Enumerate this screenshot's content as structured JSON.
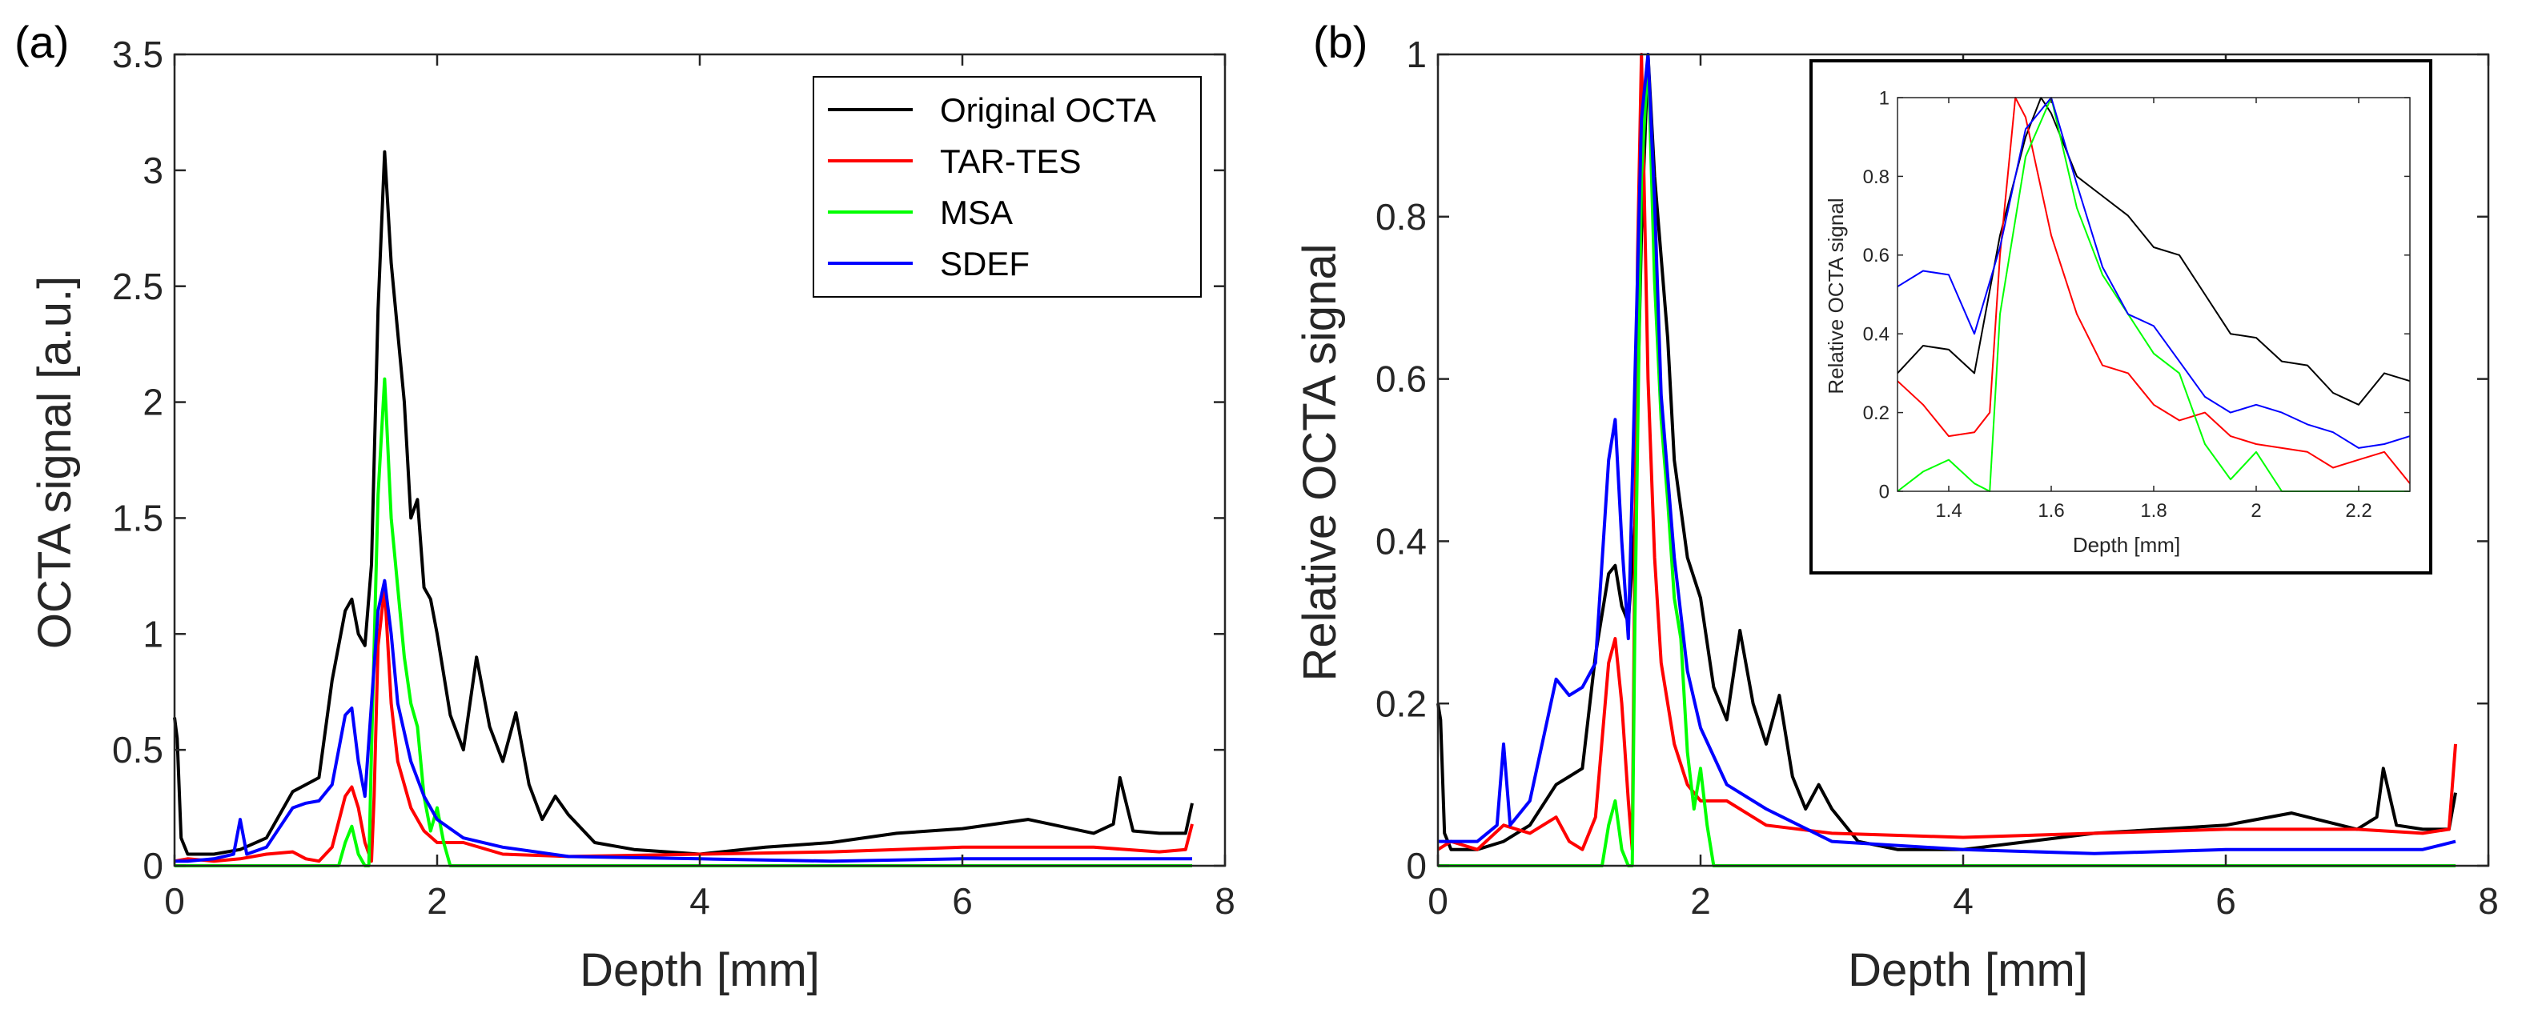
{
  "chart_data": [
    {
      "type": "line",
      "panel_label": "(a)",
      "xlabel": "Depth [mm]",
      "ylabel": "OCTA signal [a.u.]",
      "xlim": [
        0,
        8
      ],
      "ylim": [
        0,
        3.5
      ],
      "xticks": [
        "0",
        "2",
        "4",
        "6",
        "8"
      ],
      "yticks": [
        "0",
        "0.5",
        "1",
        "1.5",
        "2",
        "2.5",
        "3",
        "3.5"
      ],
      "legend": {
        "placement": "top-right",
        "entries": [
          "Original OCTA",
          "TAR-TES",
          "MSA",
          "SDEF"
        ]
      },
      "series": [
        {
          "name": "Original OCTA",
          "color": "#000000",
          "x": [
            0,
            0.02,
            0.05,
            0.1,
            0.3,
            0.5,
            0.7,
            0.9,
            1.0,
            1.1,
            1.2,
            1.3,
            1.35,
            1.4,
            1.45,
            1.5,
            1.55,
            1.6,
            1.65,
            1.7,
            1.75,
            1.8,
            1.85,
            1.9,
            1.95,
            2.0,
            2.1,
            2.2,
            2.3,
            2.4,
            2.5,
            2.6,
            2.7,
            2.8,
            2.9,
            3.0,
            3.2,
            3.5,
            4.0,
            4.5,
            5.0,
            5.5,
            6.0,
            6.5,
            7.0,
            7.15,
            7.2,
            7.3,
            7.5,
            7.7,
            7.75
          ],
          "y": [
            0.64,
            0.55,
            0.12,
            0.05,
            0.05,
            0.07,
            0.12,
            0.32,
            0.35,
            0.38,
            0.8,
            1.1,
            1.15,
            1.0,
            0.95,
            1.3,
            2.4,
            3.08,
            2.6,
            2.3,
            2.0,
            1.5,
            1.58,
            1.2,
            1.15,
            1.0,
            0.65,
            0.5,
            0.9,
            0.6,
            0.45,
            0.66,
            0.35,
            0.2,
            0.3,
            0.22,
            0.1,
            0.07,
            0.05,
            0.08,
            0.1,
            0.14,
            0.16,
            0.2,
            0.14,
            0.18,
            0.38,
            0.15,
            0.14,
            0.14,
            0.27
          ]
        },
        {
          "name": "TAR-TES",
          "color": "#ff0000",
          "x": [
            0,
            0.1,
            0.3,
            0.5,
            0.7,
            0.9,
            1.0,
            1.1,
            1.2,
            1.3,
            1.35,
            1.4,
            1.45,
            1.5,
            1.52,
            1.55,
            1.6,
            1.65,
            1.7,
            1.8,
            1.9,
            2.0,
            2.2,
            2.5,
            3.0,
            4.0,
            5.0,
            6.0,
            7.0,
            7.5,
            7.7,
            7.75
          ],
          "y": [
            0.02,
            0.03,
            0.02,
            0.03,
            0.05,
            0.06,
            0.03,
            0.02,
            0.08,
            0.3,
            0.34,
            0.25,
            0.1,
            0.02,
            0.3,
            0.95,
            1.2,
            0.7,
            0.45,
            0.25,
            0.15,
            0.1,
            0.1,
            0.05,
            0.04,
            0.05,
            0.06,
            0.08,
            0.08,
            0.06,
            0.07,
            0.18
          ]
        },
        {
          "name": "MSA",
          "color": "#00ff00",
          "x": [
            0,
            0.5,
            1.0,
            1.25,
            1.3,
            1.35,
            1.4,
            1.45,
            1.48,
            1.5,
            1.55,
            1.6,
            1.65,
            1.7,
            1.75,
            1.8,
            1.85,
            1.9,
            1.95,
            2.0,
            2.05,
            2.1,
            2.5,
            4.0,
            6.0,
            7.75
          ],
          "y": [
            0,
            0,
            0,
            0,
            0.1,
            0.17,
            0.05,
            0,
            0,
            0.5,
            1.6,
            2.1,
            1.5,
            1.2,
            0.9,
            0.7,
            0.6,
            0.3,
            0.15,
            0.25,
            0.1,
            0,
            0,
            0,
            0,
            0
          ]
        },
        {
          "name": "SDEF",
          "color": "#0000ff",
          "x": [
            0,
            0.1,
            0.3,
            0.45,
            0.5,
            0.55,
            0.7,
            0.9,
            1.0,
            1.1,
            1.2,
            1.3,
            1.35,
            1.4,
            1.45,
            1.5,
            1.55,
            1.6,
            1.65,
            1.7,
            1.8,
            1.9,
            2.0,
            2.2,
            2.5,
            3.0,
            4.0,
            5.0,
            6.0,
            7.0,
            7.5,
            7.75
          ],
          "y": [
            0.02,
            0.02,
            0.03,
            0.05,
            0.2,
            0.05,
            0.08,
            0.25,
            0.27,
            0.28,
            0.35,
            0.65,
            0.68,
            0.45,
            0.3,
            0.7,
            1.1,
            1.23,
            1.0,
            0.7,
            0.45,
            0.3,
            0.2,
            0.12,
            0.08,
            0.04,
            0.03,
            0.02,
            0.03,
            0.03,
            0.03,
            0.03
          ]
        }
      ]
    },
    {
      "type": "line",
      "panel_label": "(b)",
      "xlabel": "Depth [mm]",
      "ylabel": "Relative OCTA signal",
      "xlim": [
        0,
        8
      ],
      "ylim": [
        0,
        1
      ],
      "xticks": [
        "0",
        "2",
        "4",
        "6",
        "8"
      ],
      "yticks": [
        "0",
        "0.2",
        "0.4",
        "0.6",
        "0.8",
        "1"
      ],
      "series": [
        {
          "name": "Original OCTA",
          "color": "#000000",
          "x": [
            0,
            0.02,
            0.05,
            0.1,
            0.3,
            0.5,
            0.7,
            0.9,
            1.0,
            1.1,
            1.2,
            1.3,
            1.35,
            1.4,
            1.45,
            1.5,
            1.55,
            1.6,
            1.65,
            1.7,
            1.75,
            1.8,
            1.9,
            2.0,
            2.1,
            2.2,
            2.3,
            2.4,
            2.5,
            2.6,
            2.7,
            2.8,
            2.9,
            3.0,
            3.2,
            3.5,
            4.0,
            4.5,
            5.0,
            5.5,
            6.0,
            6.5,
            7.0,
            7.15,
            7.2,
            7.3,
            7.5,
            7.7,
            7.75
          ],
          "y": [
            0.2,
            0.18,
            0.04,
            0.02,
            0.02,
            0.03,
            0.05,
            0.1,
            0.11,
            0.12,
            0.26,
            0.36,
            0.37,
            0.32,
            0.3,
            0.42,
            0.78,
            1.0,
            0.85,
            0.75,
            0.65,
            0.5,
            0.38,
            0.33,
            0.22,
            0.18,
            0.29,
            0.2,
            0.15,
            0.21,
            0.11,
            0.07,
            0.1,
            0.07,
            0.03,
            0.02,
            0.02,
            0.03,
            0.04,
            0.045,
            0.05,
            0.065,
            0.045,
            0.06,
            0.12,
            0.05,
            0.045,
            0.045,
            0.09
          ]
        },
        {
          "name": "TAR-TES",
          "color": "#ff0000",
          "x": [
            0,
            0.1,
            0.3,
            0.5,
            0.7,
            0.9,
            1.0,
            1.1,
            1.2,
            1.3,
            1.35,
            1.4,
            1.45,
            1.48,
            1.52,
            1.55,
            1.6,
            1.65,
            1.7,
            1.8,
            1.9,
            2.0,
            2.2,
            2.5,
            3.0,
            4.0,
            5.0,
            6.0,
            7.0,
            7.5,
            7.7,
            7.75
          ],
          "y": [
            0.02,
            0.03,
            0.02,
            0.05,
            0.04,
            0.06,
            0.03,
            0.02,
            0.06,
            0.25,
            0.28,
            0.2,
            0.08,
            0.02,
            0.75,
            1.0,
            0.6,
            0.38,
            0.25,
            0.15,
            0.1,
            0.08,
            0.08,
            0.05,
            0.04,
            0.035,
            0.04,
            0.045,
            0.045,
            0.04,
            0.045,
            0.15
          ]
        },
        {
          "name": "MSA",
          "color": "#00ff00",
          "x": [
            0,
            0.5,
            1.0,
            1.25,
            1.3,
            1.35,
            1.4,
            1.45,
            1.48,
            1.5,
            1.55,
            1.6,
            1.65,
            1.7,
            1.75,
            1.8,
            1.85,
            1.9,
            1.95,
            2.0,
            2.05,
            2.1,
            2.5,
            4.0,
            6.0,
            7.75
          ],
          "y": [
            0,
            0,
            0,
            0,
            0.05,
            0.08,
            0.02,
            0,
            0,
            0.3,
            0.85,
            1.0,
            0.72,
            0.55,
            0.45,
            0.33,
            0.28,
            0.14,
            0.07,
            0.12,
            0.05,
            0,
            0,
            0,
            0,
            0
          ]
        },
        {
          "name": "SDEF",
          "color": "#0000ff",
          "x": [
            0,
            0.1,
            0.3,
            0.45,
            0.5,
            0.55,
            0.7,
            0.9,
            1.0,
            1.1,
            1.2,
            1.3,
            1.35,
            1.4,
            1.45,
            1.5,
            1.55,
            1.6,
            1.65,
            1.7,
            1.8,
            1.9,
            2.0,
            2.2,
            2.5,
            3.0,
            4.0,
            5.0,
            6.0,
            7.0,
            7.5,
            7.75
          ],
          "y": [
            0.03,
            0.03,
            0.03,
            0.05,
            0.15,
            0.05,
            0.08,
            0.23,
            0.21,
            0.22,
            0.25,
            0.5,
            0.55,
            0.4,
            0.28,
            0.6,
            0.92,
            1.0,
            0.82,
            0.58,
            0.38,
            0.24,
            0.17,
            0.1,
            0.07,
            0.03,
            0.02,
            0.015,
            0.02,
            0.02,
            0.02,
            0.03
          ]
        }
      ]
    },
    {
      "type": "line",
      "panel_label": "",
      "inset": true,
      "xlabel": "Depth [mm]",
      "ylabel": "Relative OCTA signal",
      "xlim": [
        1.3,
        2.3
      ],
      "ylim": [
        0,
        1
      ],
      "xticks": [
        "1.4",
        "1.6",
        "1.8",
        "2",
        "2.2"
      ],
      "yticks": [
        "0",
        "0.2",
        "0.4",
        "0.6",
        "0.8",
        "1"
      ],
      "series": [
        {
          "name": "Original OCTA",
          "color": "#000000",
          "x": [
            1.3,
            1.35,
            1.4,
            1.45,
            1.5,
            1.55,
            1.58,
            1.6,
            1.65,
            1.7,
            1.75,
            1.8,
            1.85,
            1.9,
            1.95,
            2.0,
            2.05,
            2.1,
            2.15,
            2.2,
            2.25,
            2.3
          ],
          "y": [
            0.3,
            0.37,
            0.36,
            0.3,
            0.65,
            0.9,
            1.0,
            0.96,
            0.8,
            0.75,
            0.7,
            0.62,
            0.6,
            0.5,
            0.4,
            0.39,
            0.33,
            0.32,
            0.25,
            0.22,
            0.3,
            0.28
          ]
        },
        {
          "name": "TAR-TES",
          "color": "#ff0000",
          "x": [
            1.3,
            1.35,
            1.4,
            1.45,
            1.48,
            1.5,
            1.53,
            1.55,
            1.6,
            1.65,
            1.7,
            1.75,
            1.8,
            1.85,
            1.9,
            1.95,
            2.0,
            2.05,
            2.1,
            2.15,
            2.2,
            2.25,
            2.3
          ],
          "y": [
            0.28,
            0.22,
            0.14,
            0.15,
            0.2,
            0.6,
            1.0,
            0.95,
            0.65,
            0.45,
            0.32,
            0.3,
            0.22,
            0.18,
            0.2,
            0.14,
            0.12,
            0.11,
            0.1,
            0.06,
            0.08,
            0.1,
            0.02
          ]
        },
        {
          "name": "MSA",
          "color": "#00ff00",
          "x": [
            1.3,
            1.35,
            1.4,
            1.45,
            1.48,
            1.5,
            1.55,
            1.6,
            1.65,
            1.7,
            1.75,
            1.8,
            1.85,
            1.9,
            1.95,
            2.0,
            2.05,
            2.1,
            2.15,
            2.2,
            2.25,
            2.3
          ],
          "y": [
            0.0,
            0.05,
            0.08,
            0.02,
            0.0,
            0.45,
            0.85,
            1.0,
            0.72,
            0.55,
            0.45,
            0.35,
            0.3,
            0.12,
            0.03,
            0.1,
            0.0,
            0.0,
            0.0,
            0.0,
            0.0,
            0.0
          ]
        },
        {
          "name": "SDEF",
          "color": "#0000ff",
          "x": [
            1.3,
            1.35,
            1.4,
            1.45,
            1.5,
            1.55,
            1.6,
            1.65,
            1.7,
            1.75,
            1.8,
            1.85,
            1.9,
            1.95,
            2.0,
            2.05,
            2.1,
            2.15,
            2.2,
            2.25,
            2.3
          ],
          "y": [
            0.52,
            0.56,
            0.55,
            0.4,
            0.62,
            0.92,
            1.0,
            0.78,
            0.57,
            0.45,
            0.42,
            0.33,
            0.24,
            0.2,
            0.22,
            0.2,
            0.17,
            0.15,
            0.11,
            0.12,
            0.14
          ]
        }
      ]
    }
  ]
}
